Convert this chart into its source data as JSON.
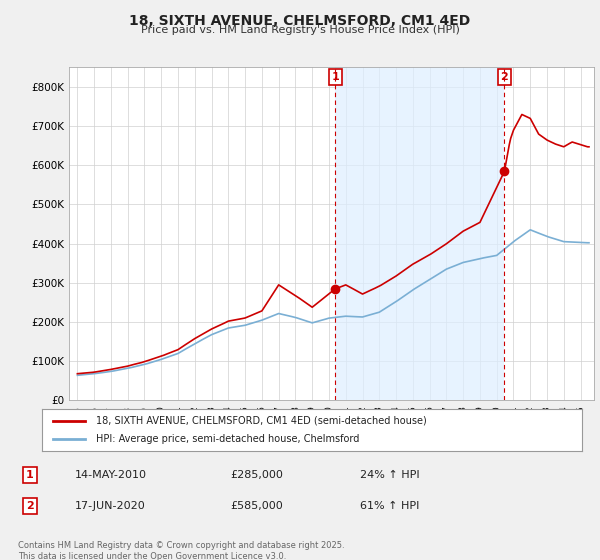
{
  "title": "18, SIXTH AVENUE, CHELMSFORD, CM1 4ED",
  "subtitle": "Price paid vs. HM Land Registry's House Price Index (HPI)",
  "background_color": "#f0f0f0",
  "plot_bg_color": "#ffffff",
  "legend_label_red": "18, SIXTH AVENUE, CHELMSFORD, CM1 4ED (semi-detached house)",
  "legend_label_blue": "HPI: Average price, semi-detached house, Chelmsford",
  "annotation1_date": "14-MAY-2010",
  "annotation1_price": "£285,000",
  "annotation1_pct": "24% ↑ HPI",
  "annotation2_date": "17-JUN-2020",
  "annotation2_price": "£585,000",
  "annotation2_pct": "61% ↑ HPI",
  "footnote": "Contains HM Land Registry data © Crown copyright and database right 2025.\nThis data is licensed under the Open Government Licence v3.0.",
  "ylim": [
    0,
    850000
  ],
  "yticks": [
    0,
    100000,
    200000,
    300000,
    400000,
    500000,
    600000,
    700000,
    800000
  ],
  "ytick_labels": [
    "£0",
    "£100K",
    "£200K",
    "£300K",
    "£400K",
    "£500K",
    "£600K",
    "£700K",
    "£800K"
  ],
  "red_color": "#cc0000",
  "blue_color": "#7aafd4",
  "shade_color": "#ddeeff",
  "annotation_color": "#cc0000",
  "sale1_x": 2010.37,
  "sale1_y": 285000,
  "sale2_x": 2020.46,
  "sale2_y": 585000,
  "xlim_left": 1994.5,
  "xlim_right": 2025.8,
  "xtick_years": [
    1995,
    1996,
    1997,
    1998,
    1999,
    2000,
    2001,
    2002,
    2003,
    2004,
    2005,
    2006,
    2007,
    2008,
    2009,
    2010,
    2011,
    2012,
    2013,
    2014,
    2015,
    2016,
    2017,
    2018,
    2019,
    2020,
    2021,
    2022,
    2023,
    2024,
    2025
  ]
}
